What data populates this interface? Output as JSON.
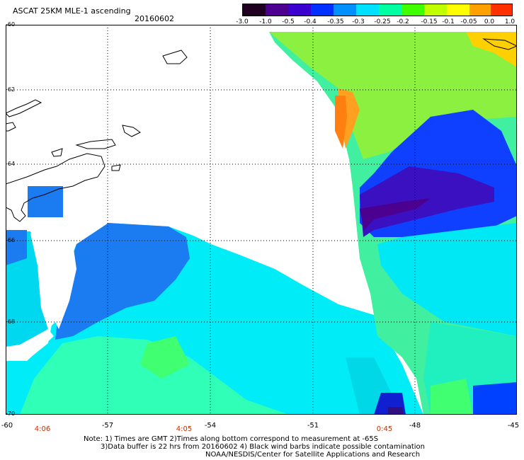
{
  "header": {
    "title": "ASCAT 25KM MLE-1 ascending",
    "date": "20160602"
  },
  "colorbar": {
    "tick_labels": [
      "-3.0",
      "-1.0",
      "-0.5",
      "-0.4",
      "-0.35",
      "-0.3",
      "-0.25",
      "-0.2",
      "-0.15",
      "-0.1",
      "-0.05",
      "0.0",
      "1.0"
    ],
    "colors": [
      "#200020",
      "#4b0090",
      "#3a00d0",
      "#0030ff",
      "#0090ff",
      "#00e0ff",
      "#00ffa0",
      "#40ff00",
      "#c0ff00",
      "#ffff00",
      "#ffa000",
      "#ff3000"
    ]
  },
  "axes": {
    "lat_labels": [
      "-60",
      "-62",
      "-64",
      "-66",
      "-68",
      "-70"
    ],
    "lon_labels": [
      "-60",
      "-57",
      "-54",
      "-51",
      "-48",
      "-45"
    ],
    "time_labels": [
      "4:06",
      "4:05",
      "0:45"
    ]
  },
  "notes": [
    "Note: 1) Times are GMT 2)Times along bottom correspond to measurement at -65S",
    "3)Data buffer is 22 hrs from 20160602 4) Black wind barbs indicate possible contamination",
    "NOAA/NESDIS/Center for Satellite Applications and Research"
  ]
}
